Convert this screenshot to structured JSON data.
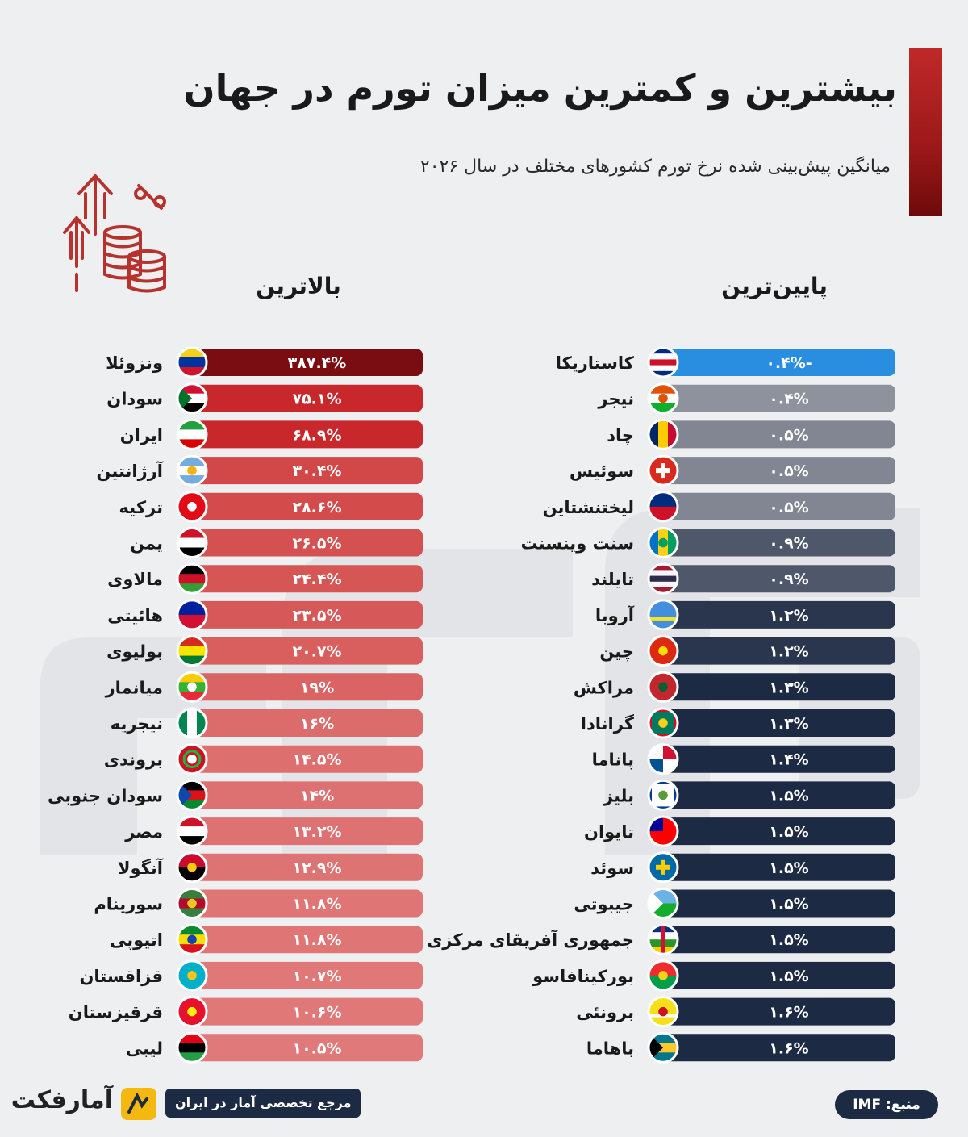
{
  "header": {
    "title": "بیشترین و کمترین میزان تورم در جهان",
    "subtitle": "میانگین پیش‌بینی شده نرخ تورم کشورهای مختلف در سال ۲۰۲۶",
    "accent": "#9b1819"
  },
  "icons": {
    "header_icon": "rising-coins-percent-icon"
  },
  "footer": {
    "logo": "آمارفکت",
    "tagline": "مرجع تخصصی آمار در ایران",
    "source": "منبع: IMF"
  },
  "colors": {
    "highest_bar": "#e07a7a",
    "highest_bar_dark": "#7a0d12",
    "lowest_bar": "#1d2a44",
    "lowest_bar_light": "#8d929c",
    "lowest_bar_first": "#2a8ee0"
  },
  "chart_data": [
    {
      "type": "bar",
      "title": "بالاترین",
      "categories": [
        "ونزوئلا",
        "سودان",
        "ایران",
        "آرژانتین",
        "ترکیه",
        "یمن",
        "مالاوی",
        "هائیتی",
        "بولیوی",
        "میانمار",
        "نیجریه",
        "بروندی",
        "سودان جنوبی",
        "مصر",
        "آنگولا",
        "سورینام",
        "اتیوپی",
        "قزاقستان",
        "قرقیزستان",
        "لیبی"
      ],
      "values": [
        387.4,
        75.1,
        68.9,
        30.4,
        28.6,
        26.5,
        24.4,
        23.5,
        20.7,
        19,
        16,
        14.5,
        14,
        13.2,
        12.9,
        11.8,
        11.8,
        10.7,
        10.6,
        10.5
      ],
      "labels": [
        "۳۸۷.۴%",
        "۷۵.۱%",
        "۶۸.۹%",
        "۳۰.۴%",
        "۲۸.۶%",
        "۲۶.۵%",
        "۲۴.۴%",
        "۲۳.۵%",
        "۲۰.۷%",
        "۱۹%",
        "۱۶%",
        "۱۴.۵%",
        "۱۴%",
        "۱۳.۲%",
        "۱۲.۹%",
        "۱۱.۸%",
        "۱۱.۸%",
        "۱۰.۷%",
        "۱۰.۶%",
        "۱۰.۵%"
      ],
      "flag_icons": [
        "venezuela-flag-icon",
        "sudan-flag-icon",
        "iran-flag-icon",
        "argentina-flag-icon",
        "turkey-flag-icon",
        "yemen-flag-icon",
        "malawi-flag-icon",
        "haiti-flag-icon",
        "bolivia-flag-icon",
        "myanmar-flag-icon",
        "nigeria-flag-icon",
        "burundi-flag-icon",
        "south-sudan-flag-icon",
        "egypt-flag-icon",
        "angola-flag-icon",
        "suriname-flag-icon",
        "ethiopia-flag-icon",
        "kazakhstan-flag-icon",
        "kyrgyzstan-flag-icon",
        "libya-flag-icon"
      ],
      "unit": "%"
    },
    {
      "type": "bar",
      "title": "پایین‌ترین",
      "categories": [
        "کاستاریکا",
        "نیجر",
        "چاد",
        "سوئیس",
        "لیختنشتاین",
        "سنت وینسنت",
        "تایلند",
        "آروبا",
        "چین",
        "مراکش",
        "گرانادا",
        "پاناما",
        "بلیز",
        "تایوان",
        "سوئد",
        "جیبوتی",
        "جمهوری آفریقای مرکزی",
        "بورکینافاسو",
        "برونئی",
        "باهاما"
      ],
      "values": [
        -0.4,
        0.4,
        0.5,
        0.5,
        0.5,
        0.9,
        0.9,
        1.2,
        1.2,
        1.3,
        1.3,
        1.4,
        1.5,
        1.5,
        1.5,
        1.5,
        1.5,
        1.5,
        1.6,
        1.6
      ],
      "labels": [
        "-۰.۴%",
        "۰.۴%",
        "۰.۵%",
        "۰.۵%",
        "۰.۵%",
        "۰.۹%",
        "۰.۹%",
        "۱.۲%",
        "۱.۲%",
        "۱.۳%",
        "۱.۳%",
        "۱.۴%",
        "۱.۵%",
        "۱.۵%",
        "۱.۵%",
        "۱.۵%",
        "۱.۵%",
        "۱.۵%",
        "۱.۶%",
        "۱.۶%"
      ],
      "flag_icons": [
        "costa-rica-flag-icon",
        "niger-flag-icon",
        "chad-flag-icon",
        "switzerland-flag-icon",
        "liechtenstein-flag-icon",
        "saint-vincent-flag-icon",
        "thailand-flag-icon",
        "aruba-flag-icon",
        "china-flag-icon",
        "morocco-flag-icon",
        "grenada-flag-icon",
        "panama-flag-icon",
        "belize-flag-icon",
        "taiwan-flag-icon",
        "sweden-flag-icon",
        "djibouti-flag-icon",
        "central-african-republic-flag-icon",
        "burkina-faso-flag-icon",
        "brunei-flag-icon",
        "bahamas-flag-icon"
      ],
      "unit": "%"
    }
  ]
}
